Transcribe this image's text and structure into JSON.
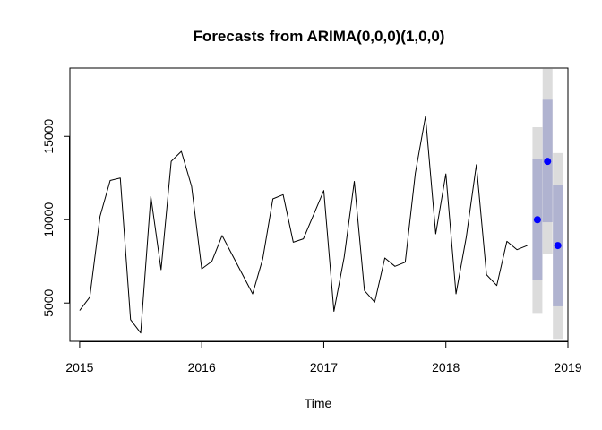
{
  "chart_data": {
    "type": "line",
    "title": "Forecasts from ARIMA(0,0,0)(1,0,0)",
    "xlabel": "Time",
    "ylabel": "",
    "xlim": [
      2014.92,
      2019.0
    ],
    "ylim": [
      2700,
      19100
    ],
    "x_ticks": [
      2015,
      2016,
      2017,
      2018,
      2019
    ],
    "x_tick_labels": [
      "2015",
      "2016",
      "2017",
      "2018",
      "2019"
    ],
    "y_ticks": [
      5000,
      10000,
      15000
    ],
    "y_tick_labels": [
      "5000",
      "10000",
      "15000"
    ],
    "colors": {
      "history": "#000000",
      "forecast_point": "#0000ff",
      "band_80": "#b0b3d0",
      "band_95": "#dcdcdc"
    },
    "series": [
      {
        "values": [
          [
            2015.0,
            4550
          ],
          [
            2015.083,
            5350
          ],
          [
            2015.167,
            10200
          ],
          [
            2015.25,
            12350
          ],
          [
            2015.333,
            12500
          ],
          [
            2015.417,
            4000
          ],
          [
            2015.5,
            3200
          ],
          [
            2015.583,
            11400
          ],
          [
            2015.667,
            7000
          ],
          [
            2015.75,
            13500
          ],
          [
            2015.833,
            14100
          ],
          [
            2015.917,
            12000
          ],
          [
            2016.0,
            7050
          ],
          [
            2016.083,
            7500
          ],
          [
            2016.167,
            9050
          ],
          [
            2016.417,
            5550
          ],
          [
            2016.5,
            7650
          ],
          [
            2016.583,
            11250
          ],
          [
            2016.667,
            11500
          ],
          [
            2016.75,
            8650
          ],
          [
            2016.833,
            8850
          ],
          [
            2017.0,
            11750
          ],
          [
            2017.083,
            4500
          ],
          [
            2017.167,
            7750
          ],
          [
            2017.25,
            12300
          ],
          [
            2017.333,
            5750
          ],
          [
            2017.417,
            5050
          ],
          [
            2017.5,
            7700
          ],
          [
            2017.583,
            7200
          ],
          [
            2017.667,
            7450
          ],
          [
            2017.75,
            12800
          ],
          [
            2017.833,
            16200
          ],
          [
            2017.917,
            9150
          ],
          [
            2018.0,
            12750
          ],
          [
            2018.083,
            5550
          ],
          [
            2018.167,
            8950
          ],
          [
            2018.25,
            13300
          ],
          [
            2018.333,
            6700
          ],
          [
            2018.417,
            6050
          ],
          [
            2018.5,
            8700
          ],
          [
            2018.583,
            8200
          ],
          [
            2018.667,
            8450
          ]
        ]
      },
      {
        "type": "forecast",
        "values": [
          {
            "x": 2018.75,
            "mean": 10000,
            "lo80": 6400,
            "hi80": 13650,
            "lo95": 4400,
            "hi95": 15550
          },
          {
            "x": 2018.833,
            "mean": 13500,
            "lo80": 9850,
            "hi80": 17200,
            "lo95": 7950,
            "hi95": 19050
          },
          {
            "x": 2018.917,
            "mean": 8450,
            "lo80": 4800,
            "hi80": 12100,
            "lo95": 2850,
            "hi95": 14000
          }
        ]
      }
    ],
    "grid": false,
    "legend": "none"
  }
}
